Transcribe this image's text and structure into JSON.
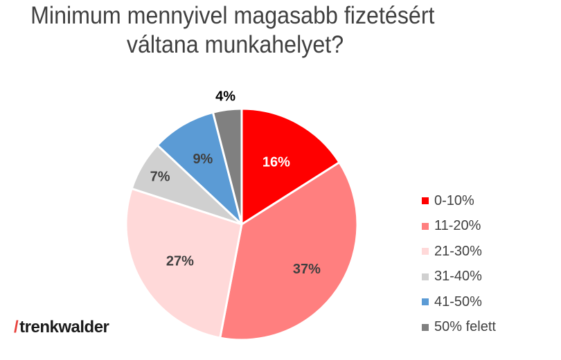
{
  "title": {
    "line1": "Minimum mennyivel magasabb fizetésért",
    "line2": "váltana munkahelyet?"
  },
  "chart_data": {
    "type": "pie",
    "title": "Minimum mennyivel magasabb fizetésért váltana munkahelyet?",
    "categories": [
      "0-10%",
      "11-20%",
      "21-30%",
      "31-40%",
      "41-50%",
      "50% felett"
    ],
    "values": [
      16,
      37,
      27,
      7,
      9,
      4
    ],
    "labels": [
      "16%",
      "37%",
      "27%",
      "7%",
      "9%",
      "4%"
    ],
    "colors": [
      "#ff0000",
      "#ff7f7f",
      "#ffd9d9",
      "#d0d0d0",
      "#5b9bd5",
      "#808080"
    ],
    "label_colors": [
      "#ffffff",
      "#404040",
      "#404040",
      "#404040",
      "#404040",
      "#000000"
    ],
    "start_angle_deg": 0,
    "direction": "clockwise",
    "legend_position": "right"
  },
  "legend": {
    "items": [
      {
        "label": "0-10%",
        "color": "#ff0000"
      },
      {
        "label": "11-20%",
        "color": "#ff7f7f"
      },
      {
        "label": "21-30%",
        "color": "#ffd9d9"
      },
      {
        "label": "31-40%",
        "color": "#d0d0d0"
      },
      {
        "label": "41-50%",
        "color": "#5b9bd5"
      },
      {
        "label": "50% felett",
        "color": "#808080"
      }
    ]
  },
  "logo": {
    "slash": "/",
    "text": "trenkwalder"
  }
}
